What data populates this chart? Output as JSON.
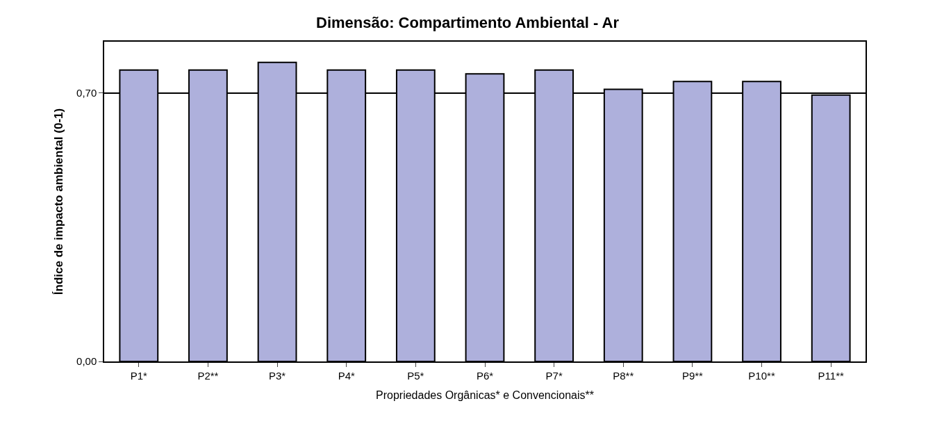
{
  "chart_data": {
    "type": "bar",
    "title": "Dimensão: Compartimento Ambiental - Ar",
    "xlabel": "Propriedades Orgânicas* e Convencionais**",
    "ylabel": "Índice de impacto ambiental (0-1)",
    "categories": [
      "P1*",
      "P2**",
      "P3*",
      "P4*",
      "P5*",
      "P6*",
      "P7*",
      "P8**",
      "P9**",
      "P10**",
      "P11**"
    ],
    "values": [
      0.76,
      0.76,
      0.78,
      0.76,
      0.76,
      0.75,
      0.76,
      0.71,
      0.73,
      0.73,
      0.695
    ],
    "color": "#aeb0dc",
    "ylim": [
      0,
      0.834
    ],
    "yticks": [
      {
        "value": 0,
        "label": "0,00"
      },
      {
        "value": 0.7,
        "label": "0,70"
      }
    ],
    "grid": "y"
  }
}
